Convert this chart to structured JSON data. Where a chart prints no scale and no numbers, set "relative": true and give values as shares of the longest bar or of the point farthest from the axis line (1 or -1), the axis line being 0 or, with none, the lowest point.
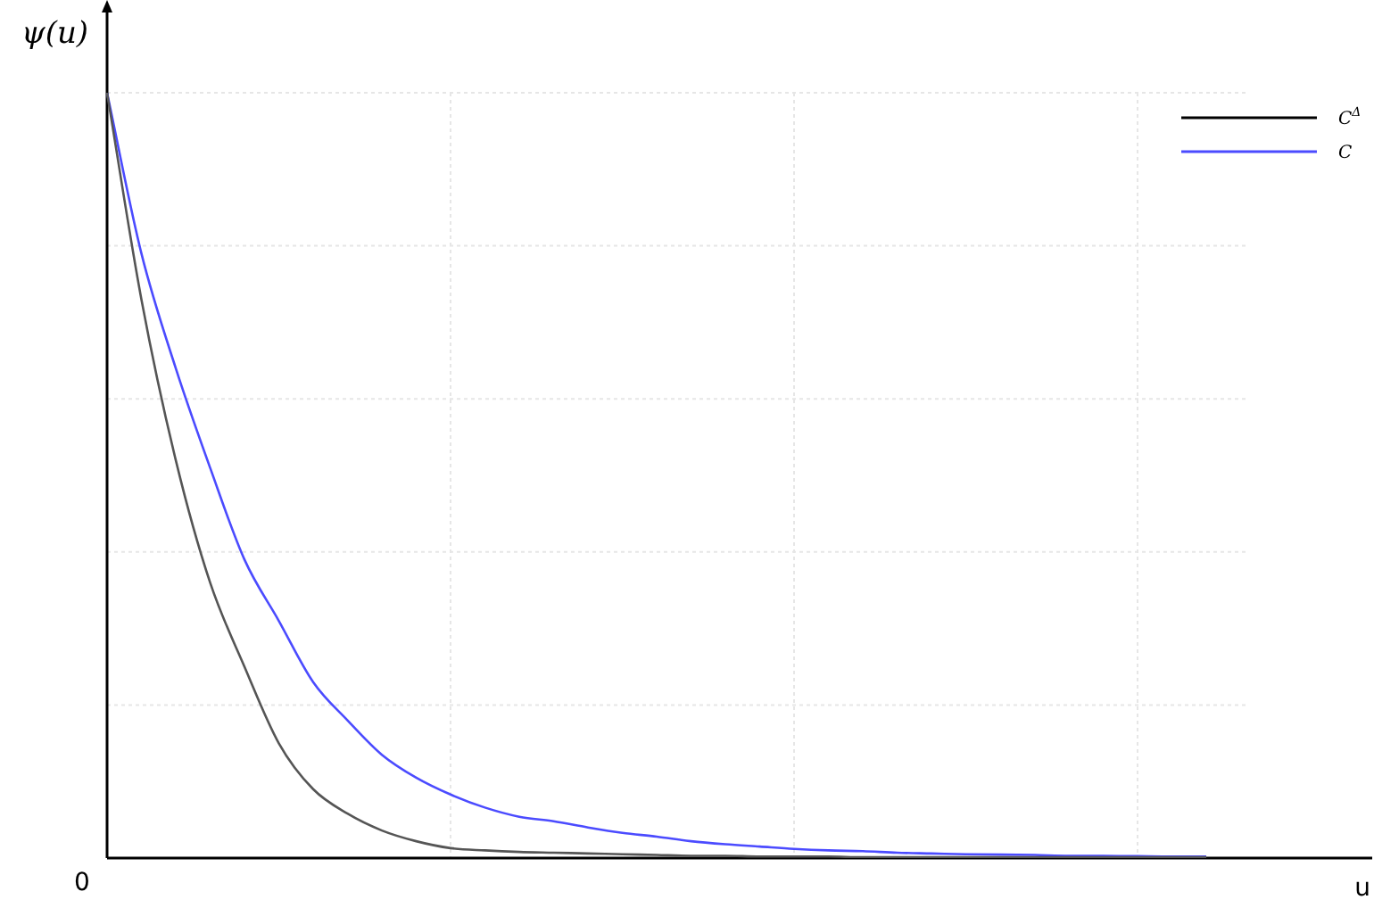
{
  "chart_data": {
    "type": "line",
    "relative": true,
    "xlabel": "u",
    "ylabel": "ψ(u)",
    "annotations": [
      "0"
    ],
    "categories": [
      null,
      null,
      null,
      null,
      null,
      null,
      null,
      null,
      null,
      null,
      null,
      null,
      null,
      null,
      null,
      null,
      null,
      null,
      null,
      null,
      null,
      null,
      null,
      null,
      null,
      null,
      null,
      null,
      null,
      null,
      null,
      null,
      null
    ],
    "series": [
      {
        "name": "C$^{Δ}$",
        "color": "#555555",
        "values": [
          1,
          0.73,
          0.52,
          0.36,
          0.25,
          0.15,
          0.09,
          0.058,
          0.036,
          0.022,
          0.013,
          0.01,
          0.008,
          0.007,
          0.006,
          0.005,
          0.004,
          0.003,
          0.003,
          0.002,
          0.002,
          0.002,
          0.001,
          0.001,
          0.001,
          0.001,
          0.001,
          0.001,
          0.001,
          0.001,
          0.001,
          0.001,
          0.001
        ]
      },
      {
        "name": "C",
        "color": "#4b4bff",
        "values": [
          1,
          0.79,
          0.64,
          0.51,
          0.39,
          0.31,
          0.23,
          0.18,
          0.135,
          0.105,
          0.083,
          0.066,
          0.054,
          0.048,
          0.04,
          0.033,
          0.028,
          0.022,
          0.018,
          0.015,
          0.012,
          0.01,
          0.009,
          0.007,
          0.006,
          0.005,
          0.0045,
          0.004,
          0.003,
          0.003,
          0.0025,
          0.002,
          0.002
        ]
      }
    ],
    "grid": true,
    "legend": "top right",
    "marker": "none",
    "line_style": "solid"
  }
}
